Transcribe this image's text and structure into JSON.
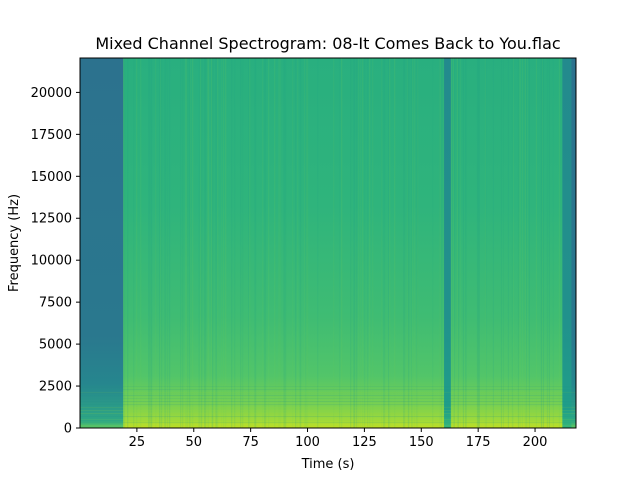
{
  "chart_data": {
    "type": "heatmap",
    "title": "Mixed Channel Spectrogram: 08-It Comes Back to You.flac",
    "xlabel": "Time (s)",
    "ylabel": "Frequency (Hz)",
    "xlim": [
      0,
      218
    ],
    "ylim": [
      0,
      22050
    ],
    "x_ticks": [
      25,
      50,
      75,
      100,
      125,
      150,
      175,
      200
    ],
    "y_ticks": [
      0,
      2500,
      5000,
      7500,
      10000,
      12500,
      15000,
      17500,
      20000
    ],
    "colormap": "viridis",
    "grid": false,
    "regions": [
      {
        "t_start": 0,
        "t_end": 19,
        "level": "low"
      },
      {
        "t_start": 19,
        "t_end": 160,
        "level": "mid-high"
      },
      {
        "t_start": 160,
        "t_end": 163,
        "level": "dip"
      },
      {
        "t_start": 163,
        "t_end": 212,
        "level": "mid-high"
      },
      {
        "t_start": 212,
        "t_end": 216,
        "level": "dip"
      },
      {
        "t_start": 216,
        "t_end": 218,
        "level": "edge"
      }
    ],
    "low_band_max_hz": 2500
  }
}
